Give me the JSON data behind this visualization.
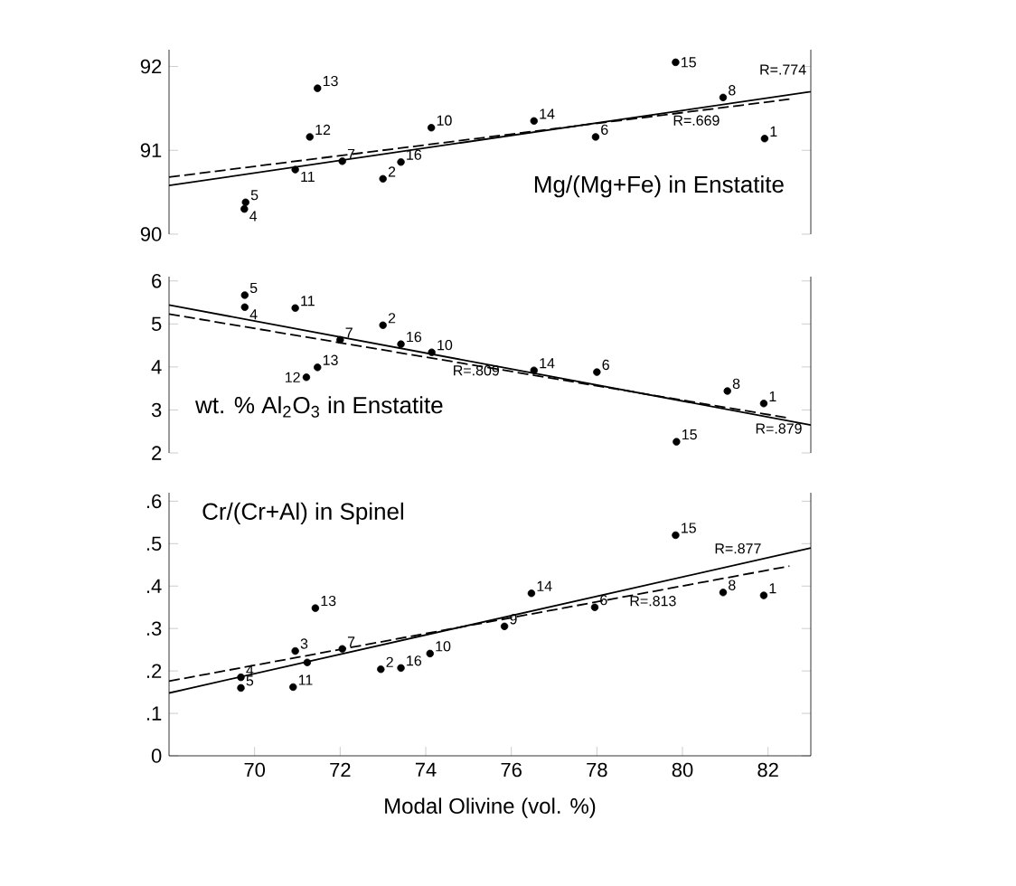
{
  "chart_data": [
    {
      "type": "scatter",
      "title": "Mg/(Mg+Fe) in Enstatite",
      "xlim": [
        68,
        83
      ],
      "ylim": [
        90,
        92.2
      ],
      "yticks": [
        90,
        91,
        92
      ],
      "tick_labels": "y",
      "series": [
        {
          "type": "scatter",
          "marker": "circle",
          "color": "#000000",
          "x": [
            79.84,
            71.47,
            71.29,
            74.13,
            76.53,
            80.95,
            77.97,
            81.92,
            70.95,
            72.05,
            73.42,
            73.0,
            69.79,
            69.76
          ],
          "values": [
            92.05,
            91.74,
            91.16,
            91.27,
            91.35,
            91.63,
            91.16,
            91.14,
            90.77,
            90.87,
            90.86,
            90.66,
            90.38,
            90.3
          ]
        },
        {
          "type": "line",
          "name": "R=.774",
          "color": "#000000",
          "line_style": "solid",
          "x": [
            68,
            83
          ],
          "values": [
            90.58,
            91.7
          ]
        },
        {
          "type": "line",
          "name": "R=.669",
          "color": "#000000",
          "line_style": "dashed",
          "x": [
            68,
            82.5
          ],
          "values": [
            90.68,
            91.61
          ]
        }
      ],
      "annotations": [
        {
          "text": "15",
          "x": 79.84,
          "y": 92.05
        },
        {
          "text": "13",
          "x": 71.47,
          "y": 91.74
        },
        {
          "text": "12",
          "x": 71.29,
          "y": 91.16
        },
        {
          "text": "10",
          "x": 74.13,
          "y": 91.27
        },
        {
          "text": "14",
          "x": 76.53,
          "y": 91.35
        },
        {
          "text": "8",
          "x": 80.95,
          "y": 91.63
        },
        {
          "text": "6",
          "x": 77.97,
          "y": 91.16
        },
        {
          "text": "1",
          "x": 81.92,
          "y": 91.14
        },
        {
          "text": "11",
          "x": 70.95,
          "y": 90.77
        },
        {
          "text": "7",
          "x": 72.05,
          "y": 90.87
        },
        {
          "text": "16",
          "x": 73.42,
          "y": 90.86
        },
        {
          "text": "2",
          "x": 73.0,
          "y": 90.66
        },
        {
          "text": "5",
          "x": 69.79,
          "y": 90.38
        },
        {
          "text": "4",
          "x": 69.76,
          "y": 90.3
        }
      ]
    },
    {
      "type": "scatter",
      "title": "wt. % Al$_{2}$O$_{3}$ in Enstatite",
      "xlim": [
        68,
        83
      ],
      "ylim": [
        2,
        6.1
      ],
      "yticks": [
        2,
        3,
        4,
        5,
        6
      ],
      "tick_labels": "y",
      "series": [
        {
          "type": "scatter",
          "marker": "circle",
          "color": "#000000",
          "x": [
            69.77,
            69.77,
            70.95,
            73.0,
            72.0,
            73.42,
            74.14,
            71.21,
            71.47,
            76.53,
            78.0,
            81.05,
            81.9,
            79.86
          ],
          "values": [
            5.67,
            5.39,
            5.37,
            4.97,
            4.63,
            4.53,
            4.34,
            3.76,
            3.99,
            3.92,
            3.88,
            3.44,
            3.15,
            2.26
          ]
        },
        {
          "type": "line",
          "name": "R=.879",
          "color": "#000000",
          "line_style": "solid",
          "x": [
            68,
            83
          ],
          "values": [
            5.44,
            2.65
          ]
        },
        {
          "type": "line",
          "name": "R=.809",
          "color": "#000000",
          "line_style": "dashed",
          "x": [
            68,
            82.5
          ],
          "values": [
            5.23,
            2.81
          ]
        }
      ],
      "annotations": [
        {
          "text": "5",
          "x": 69.77,
          "y": 5.67
        },
        {
          "text": "4",
          "x": 69.77,
          "y": 5.39
        },
        {
          "text": "11",
          "x": 70.95,
          "y": 5.37
        },
        {
          "text": "2",
          "x": 73.0,
          "y": 4.97
        },
        {
          "text": "7",
          "x": 72.0,
          "y": 4.63
        },
        {
          "text": "16",
          "x": 73.42,
          "y": 4.53
        },
        {
          "text": "10",
          "x": 74.14,
          "y": 4.34
        },
        {
          "text": "12",
          "x": 71.21,
          "y": 3.76
        },
        {
          "text": "13",
          "x": 71.47,
          "y": 3.99
        },
        {
          "text": "14",
          "x": 76.53,
          "y": 3.92
        },
        {
          "text": "6",
          "x": 78.0,
          "y": 3.88
        },
        {
          "text": "8",
          "x": 81.05,
          "y": 3.44
        },
        {
          "text": "1",
          "x": 81.9,
          "y": 3.15
        },
        {
          "text": "15",
          "x": 79.86,
          "y": 2.26
        }
      ]
    },
    {
      "type": "scatter",
      "title": "Cr/(Cr+Al) in Spinel",
      "xlabel": "Modal Olivine (vol. %)",
      "xlim": [
        68,
        83
      ],
      "ylim": [
        0,
        0.62
      ],
      "xticks": [
        70,
        72,
        74,
        76,
        78,
        80,
        82
      ],
      "yticks": [
        {
          "value": 0,
          "label": "0"
        },
        {
          "value": 0.1,
          "label": ".1"
        },
        {
          "value": 0.2,
          "label": ".2"
        },
        {
          "value": 0.3,
          "label": ".3"
        },
        {
          "value": 0.4,
          "label": ".4"
        },
        {
          "value": 0.5,
          "label": ".5"
        },
        {
          "value": 0.6,
          "label": ".6"
        }
      ],
      "series": [
        {
          "type": "scatter",
          "marker": "circle",
          "color": "#000000",
          "x": [
            79.84,
            76.47,
            71.42,
            77.95,
            75.84,
            80.95,
            81.9,
            70.95,
            72.05,
            71.23,
            69.68,
            69.68,
            70.9,
            72.95,
            73.42,
            74.1
          ],
          "values": [
            0.52,
            0.383,
            0.348,
            0.35,
            0.305,
            0.385,
            0.378,
            0.247,
            0.252,
            0.22,
            0.185,
            0.16,
            0.162,
            0.204,
            0.207,
            0.241
          ]
        },
        {
          "type": "line",
          "name": "R=.877",
          "color": "#000000",
          "line_style": "solid",
          "x": [
            68,
            83
          ],
          "values": [
            0.148,
            0.49
          ]
        },
        {
          "type": "line",
          "name": "R=.813",
          "color": "#000000",
          "line_style": "dashed",
          "x": [
            68,
            82.5
          ],
          "values": [
            0.176,
            0.447
          ]
        }
      ],
      "annotations": [
        {
          "text": "15",
          "x": 79.84,
          "y": 0.52
        },
        {
          "text": "14",
          "x": 76.47,
          "y": 0.383
        },
        {
          "text": "13",
          "x": 71.42,
          "y": 0.348
        },
        {
          "text": "6",
          "x": 77.95,
          "y": 0.35
        },
        {
          "text": "9",
          "x": 75.84,
          "y": 0.305
        },
        {
          "text": "8",
          "x": 80.95,
          "y": 0.385
        },
        {
          "text": "1",
          "x": 81.9,
          "y": 0.378
        },
        {
          "text": "3",
          "x": 70.95,
          "y": 0.247
        },
        {
          "text": "7",
          "x": 72.05,
          "y": 0.252
        },
        {
          "text": "4",
          "x": 69.68,
          "y": 0.185
        },
        {
          "text": "5",
          "x": 69.68,
          "y": 0.16
        },
        {
          "text": "11",
          "x": 70.9,
          "y": 0.162
        },
        {
          "text": "2",
          "x": 72.95,
          "y": 0.204
        },
        {
          "text": "16",
          "x": 73.42,
          "y": 0.207
        },
        {
          "text": "10",
          "x": 74.1,
          "y": 0.241
        }
      ]
    }
  ]
}
